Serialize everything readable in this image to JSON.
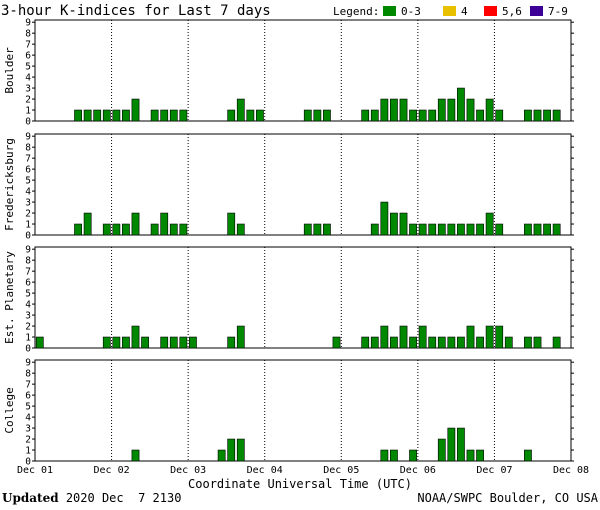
{
  "chart_data": {
    "type": "bar",
    "title": "3-hour K-indices for Last 7 days",
    "legend": {
      "label": "Legend:",
      "placement": "top-right",
      "entries": [
        {
          "label": "0-3",
          "color": "#008800"
        },
        {
          "label": "4",
          "color": "#e8c000"
        },
        {
          "label": "5,6",
          "color": "#ff0000"
        },
        {
          "label": "7-9",
          "color": "#3c0096"
        }
      ]
    },
    "xlabel": "Coordinate Universal Time (UTC)",
    "x_ticks": [
      "Dec 01",
      "Dec 02",
      "Dec 03",
      "Dec 04",
      "Dec 05",
      "Dec 06",
      "Dec 07",
      "Dec 08"
    ],
    "ylim": [
      0,
      9
    ],
    "y_ticks": [
      0,
      1,
      2,
      3,
      4,
      5,
      6,
      7,
      8,
      9
    ],
    "grid": "dotted vertical at day boundaries",
    "bar_color": "#008800",
    "series": [
      {
        "name": "Boulder",
        "values": [
          0,
          0,
          0,
          0,
          1,
          1,
          1,
          1,
          1,
          1,
          2,
          0,
          1,
          1,
          1,
          1,
          0,
          0,
          0,
          0,
          1,
          2,
          1,
          1,
          0,
          0,
          0,
          0,
          1,
          1,
          1,
          0,
          0,
          0,
          1,
          1,
          2,
          2,
          2,
          1,
          1,
          1,
          2,
          2,
          3,
          2,
          1,
          2,
          1,
          0,
          0,
          1,
          1,
          1,
          1,
          0
        ]
      },
      {
        "name": "Fredericksburg",
        "values": [
          0,
          0,
          0,
          0,
          1,
          2,
          0,
          1,
          1,
          1,
          2,
          0,
          1,
          2,
          1,
          1,
          0,
          0,
          0,
          0,
          2,
          1,
          0,
          0,
          0,
          0,
          0,
          0,
          1,
          1,
          1,
          0,
          0,
          0,
          0,
          1,
          3,
          2,
          2,
          1,
          1,
          1,
          1,
          1,
          1,
          1,
          1,
          2,
          1,
          0,
          0,
          1,
          1,
          1,
          1,
          0
        ]
      },
      {
        "name": "Est. Planetary",
        "values": [
          1,
          0,
          0,
          0,
          0,
          0,
          0,
          1,
          1,
          1,
          2,
          1,
          0,
          1,
          1,
          1,
          1,
          0,
          0,
          0,
          1,
          2,
          0,
          0,
          0,
          0,
          0,
          0,
          0,
          0,
          0,
          1,
          0,
          0,
          1,
          1,
          2,
          1,
          2,
          1,
          2,
          1,
          1,
          1,
          1,
          2,
          1,
          2,
          2,
          1,
          0,
          1,
          1,
          0,
          1,
          0
        ]
      },
      {
        "name": "College",
        "values": [
          0,
          0,
          0,
          0,
          0,
          0,
          0,
          0,
          0,
          0,
          1,
          0,
          0,
          0,
          0,
          0,
          0,
          0,
          0,
          1,
          2,
          2,
          0,
          0,
          0,
          0,
          0,
          0,
          0,
          0,
          0,
          0,
          0,
          0,
          0,
          0,
          1,
          1,
          0,
          1,
          0,
          0,
          2,
          3,
          3,
          1,
          1,
          0,
          0,
          0,
          0,
          1,
          0,
          0,
          0,
          0
        ]
      }
    ]
  },
  "footer": {
    "updated_label": "Updated",
    "updated_value": "2020 Dec  7 2130",
    "credit": "NOAA/SWPC Boulder, CO USA"
  }
}
